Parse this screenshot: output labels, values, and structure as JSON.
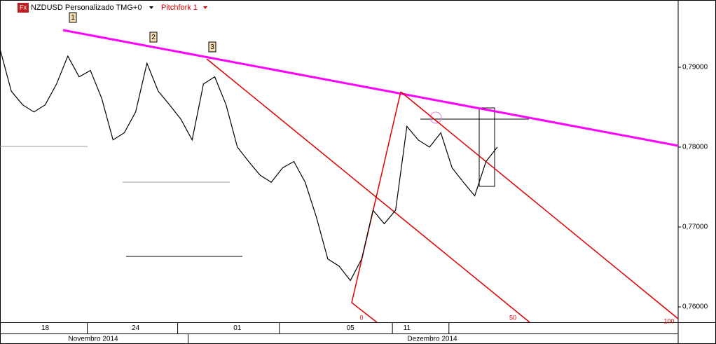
{
  "chart_data": {
    "type": "line",
    "icon": "Fx",
    "title": "NZDUSD Personalizado TMG+0",
    "subtitle": "Pitchfork 1",
    "annotations": [
      "1",
      "2",
      "3"
    ],
    "pitchfork_levels": [
      "0",
      "50",
      "100"
    ],
    "months": [
      "Novembro 2014",
      "Dezembro 2014"
    ],
    "categories": [
      null,
      null,
      null,
      null,
      "18",
      null,
      null,
      null,
      null,
      null,
      null,
      null,
      "24",
      null,
      null,
      null,
      null,
      null,
      null,
      null,
      null,
      "01",
      null,
      null,
      null,
      null,
      null,
      null,
      null,
      null,
      null,
      "05",
      null,
      null,
      null,
      null,
      "11",
      null,
      null,
      null,
      null,
      null,
      null,
      null,
      null,
      null,
      null,
      null,
      null,
      null,
      null,
      null,
      null,
      null,
      null,
      null,
      null,
      null,
      null,
      null,
      null
    ],
    "series": [
      {
        "color": "#000000",
        "values": [
          0.7923,
          0.787,
          0.7853,
          0.7844,
          0.7853,
          0.7879,
          0.7914,
          0.7888,
          0.7896,
          0.7861,
          0.7809,
          0.7818,
          0.7844,
          0.7905,
          0.787,
          0.7853,
          0.7835,
          0.7809,
          0.7879,
          0.7888,
          0.7853,
          0.78,
          0.7782,
          0.7765,
          0.7756,
          0.7774,
          0.7782,
          0.7756,
          0.7712,
          0.766,
          0.7651,
          0.7633,
          0.766,
          0.7721,
          0.7704,
          0.7721,
          0.7826,
          0.7809,
          0.78,
          0.7818,
          0.7774,
          0.7756,
          0.7739,
          0.7782,
          0.78,
          null,
          null,
          null,
          null,
          null,
          null,
          null,
          null,
          null,
          null,
          null,
          null,
          null,
          null,
          null,
          null
        ]
      }
    ],
    "ylim": [
      0.75807,
      0.79842
    ],
    "yticks": [
      {
        "value": 0.76,
        "label": "0,76000"
      },
      {
        "value": 0.77,
        "label": "0,77000"
      },
      {
        "value": 0.78,
        "label": "0,78000"
      },
      {
        "value": 0.79,
        "label": "0,79000"
      }
    ]
  }
}
